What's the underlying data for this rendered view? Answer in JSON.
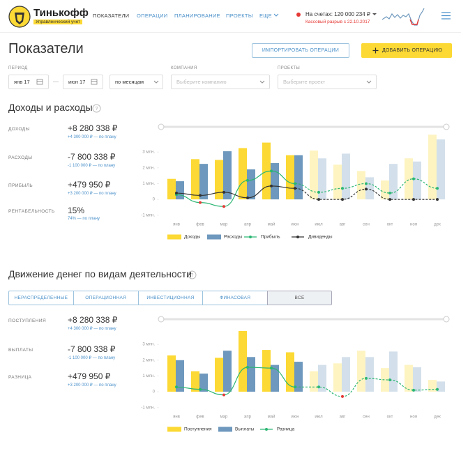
{
  "header": {
    "logo": "Тинькофф",
    "subtitle": "Управленческий учет",
    "nav": [
      "ПОКАЗАТЕЛИ",
      "ОПЕРАЦИИ",
      "ПЛАНИРОВАНИЕ",
      "ПРОЕКТЫ",
      "ЕЩЕ"
    ],
    "balance": "На счетах: 120 000 234 ₽",
    "cash_gap": "Кассовый разрыв с 22.10.2017"
  },
  "page": {
    "title": "Показатели",
    "import_button": "ИМПОРТИРОВАТЬ ОПЕРАЦИИ",
    "add_button": "ДОБАВИТЬ ОПЕРАЦИЮ"
  },
  "filters": {
    "period_label": "ПЕРИОД",
    "period_from": "янв 17",
    "period_to": "июн 17",
    "grouping": "по месяцам",
    "company_label": "КОМПАНИЯ",
    "company_placeholder": "Выберите компанию",
    "projects_label": "ПРОЕКТЫ",
    "project_placeholder": "Выберите проект"
  },
  "sections": [
    {
      "title": "Доходы и расходы",
      "metrics": [
        {
          "label": "ДОХОДЫ",
          "value": "+8 280 338 ₽",
          "plan": "+4 300 000 ₽ — по плану"
        },
        {
          "label": "РАСХОДЫ",
          "value": "-7 800 338 ₽",
          "plan": "-1 100 000 ₽ — по плану"
        },
        {
          "label": "ПРИБЫЛЬ",
          "value": "+479 950 ₽",
          "plan": "+3 200 000 ₽ — по плану"
        },
        {
          "label": "РЕНТАБЕЛЬНОСТЬ",
          "value": "15%",
          "plan": "74% — по плану"
        }
      ]
    },
    {
      "title": "Движение денег по видам деятельности",
      "tabs": [
        "НЕРАСПРЕДЕЛЕННЫЕ",
        "ОПЕРАЦИОННАЯ",
        "ИНВЕСТИЦИОННАЯ",
        "ФИНАСОВАЯ",
        "ВСЕ"
      ],
      "metrics": [
        {
          "label": "ПОСТУПЛЕНИЯ",
          "value": "+8 280 338 ₽",
          "plan": "+4 300 000 ₽ — по плану"
        },
        {
          "label": "ВЫПЛАТЫ",
          "value": "-7 800 338 ₽",
          "plan": "-1 100 000 ₽ — по плану"
        },
        {
          "label": "РАЗНИЦА",
          "value": "+479 950 ₽",
          "plan": "+3 200 000 ₽ — по плану"
        }
      ]
    }
  ],
  "chart_data": [
    {
      "type": "bar",
      "categories": [
        "янв",
        "фев",
        "мар",
        "апр",
        "май",
        "июн",
        "июл",
        "авг",
        "сен",
        "окт",
        "ноя",
        "дек"
      ],
      "ylim": [
        -1.1,
        4.2
      ],
      "yticks": [
        {
          "value": 3,
          "label": "3 млн."
        },
        {
          "value": 2,
          "label": "2 млн."
        },
        {
          "value": 1,
          "label": "1 млн."
        },
        0,
        {
          "value": -1,
          "label": "-1 млн."
        }
      ],
      "forecast_start_index": 6,
      "negative_color": "#e53935",
      "series": [
        {
          "name": "Доходы",
          "type": "bar",
          "color": "#fcd934",
          "values": [
            1.3,
            2.55,
            2.5,
            3.25,
            3.6,
            2.8,
            3.1,
            2.2,
            1.8,
            1.2,
            2.6,
            4.1
          ]
        },
        {
          "name": "Расходы",
          "type": "bar",
          "color": "#6e98bd",
          "values": [
            1.15,
            2.25,
            3.05,
            1.9,
            2.3,
            2.8,
            2.6,
            2.9,
            1.4,
            2.25,
            2.4,
            3.8
          ]
        },
        {
          "name": "Прибыль",
          "type": "line",
          "color": "#2bb673",
          "values": [
            0.3,
            -0.2,
            -0.45,
            1.2,
            1.8,
            1.0,
            0.45,
            0.7,
            1.0,
            0.4,
            1.3,
            0.7
          ]
        },
        {
          "name": "Дивиденды",
          "type": "line",
          "color": "#333333",
          "values": [
            0.4,
            0.25,
            0.45,
            0.1,
            0.85,
            0.7,
            0,
            0,
            0.65,
            0,
            0,
            0
          ]
        }
      ]
    },
    {
      "type": "bar",
      "categories": [
        "янв",
        "фев",
        "мар",
        "апр",
        "май",
        "июн",
        "июл",
        "авг",
        "сен",
        "окт",
        "ноя",
        "дек"
      ],
      "ylim": [
        -1.1,
        4.2
      ],
      "yticks": [
        {
          "value": 3,
          "label": "3 млн."
        },
        {
          "value": 2,
          "label": "2 млн."
        },
        {
          "value": 1,
          "label": "1 млн."
        },
        0,
        {
          "value": -1,
          "label": "-1 млн."
        }
      ],
      "forecast_start_index": 6,
      "negative_color": "#e53935",
      "series": [
        {
          "name": "Поступления",
          "type": "bar",
          "color": "#fcd934",
          "values": [
            2.3,
            1.3,
            2.15,
            3.85,
            2.65,
            2.5,
            1.3,
            1.8,
            2.6,
            1.5,
            1.7,
            0.75
          ]
        },
        {
          "name": "Выплаты",
          "type": "bar",
          "color": "#6e98bd",
          "values": [
            2.0,
            1.15,
            2.6,
            2.2,
            1.7,
            1.9,
            1.7,
            2.2,
            2.2,
            2.55,
            1.55,
            0.65
          ]
        },
        {
          "name": "Разница",
          "type": "line",
          "color": "#2bb673",
          "values": [
            0.3,
            0.15,
            -0.2,
            1.55,
            1.5,
            0.3,
            0.3,
            -0.3,
            0.85,
            0.75,
            0.1,
            0.15
          ]
        }
      ]
    }
  ]
}
